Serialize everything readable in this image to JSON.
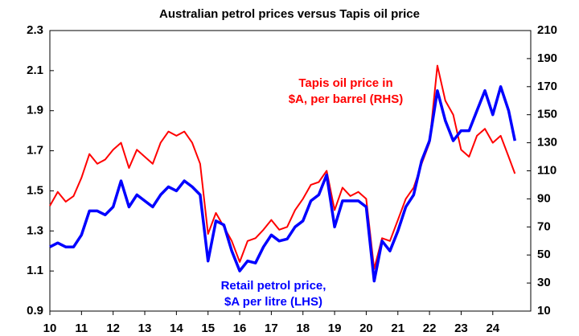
{
  "chart_data": {
    "type": "line",
    "title": "Australian petrol prices versus Tapis oil price",
    "annotations": [
      {
        "lines": [
          "Tapis oil price in",
          "$A, per barrel (RHS)"
        ],
        "color": "#ff0000"
      },
      {
        "lines": [
          "Retail petrol price,",
          "$A per litre (LHS)"
        ],
        "color": "#0000ff"
      }
    ],
    "x": [
      2010.0,
      2010.25,
      2010.5,
      2010.75,
      2011.0,
      2011.25,
      2011.5,
      2011.75,
      2012.0,
      2012.25,
      2012.5,
      2012.75,
      2013.0,
      2013.25,
      2013.5,
      2013.75,
      2014.0,
      2014.25,
      2014.5,
      2014.75,
      2015.0,
      2015.25,
      2015.5,
      2015.75,
      2016.0,
      2016.25,
      2016.5,
      2016.75,
      2017.0,
      2017.25,
      2017.5,
      2017.75,
      2018.0,
      2018.25,
      2018.5,
      2018.75,
      2019.0,
      2019.25,
      2019.5,
      2019.75,
      2020.0,
      2020.25,
      2020.5,
      2020.75,
      2021.0,
      2021.25,
      2021.5,
      2021.75,
      2022.0,
      2022.25,
      2022.5,
      2022.75,
      2023.0,
      2023.25,
      2023.5,
      2023.75,
      2024.0,
      2024.25,
      2024.5,
      2024.7
    ],
    "series": [
      {
        "name": "Retail petrol price, $A per litre (LHS)",
        "color": "#0000ff",
        "axis": "y",
        "values": [
          1.22,
          1.24,
          1.22,
          1.22,
          1.28,
          1.4,
          1.4,
          1.38,
          1.42,
          1.55,
          1.42,
          1.48,
          1.45,
          1.42,
          1.48,
          1.52,
          1.5,
          1.55,
          1.52,
          1.48,
          1.15,
          1.35,
          1.33,
          1.2,
          1.1,
          1.15,
          1.14,
          1.22,
          1.28,
          1.25,
          1.26,
          1.32,
          1.35,
          1.45,
          1.48,
          1.58,
          1.32,
          1.45,
          1.45,
          1.45,
          1.42,
          1.05,
          1.25,
          1.2,
          1.3,
          1.42,
          1.48,
          1.65,
          1.75,
          2.0,
          1.85,
          1.75,
          1.8,
          1.8,
          1.9,
          2.0,
          1.88,
          2.02,
          1.9,
          1.75
        ]
      },
      {
        "name": "Tapis oil price in $A, per barrel (RHS)",
        "color": "#ff0000",
        "axis": "y2",
        "values": [
          85,
          95,
          88,
          92,
          105,
          122,
          115,
          118,
          125,
          130,
          112,
          125,
          120,
          115,
          130,
          138,
          135,
          138,
          130,
          115,
          65,
          80,
          70,
          60,
          45,
          60,
          62,
          68,
          75,
          68,
          70,
          82,
          90,
          100,
          102,
          110,
          82,
          98,
          92,
          95,
          90,
          40,
          62,
          60,
          75,
          90,
          98,
          115,
          130,
          185,
          160,
          150,
          125,
          120,
          135,
          140,
          130,
          135,
          120,
          108
        ]
      }
    ],
    "xlim": [
      2010,
      2025.2
    ],
    "xticks": [
      {
        "value": 2010,
        "label": "10"
      },
      {
        "value": 2011,
        "label": "11"
      },
      {
        "value": 2012,
        "label": "12"
      },
      {
        "value": 2013,
        "label": "13"
      },
      {
        "value": 2014,
        "label": "14"
      },
      {
        "value": 2015,
        "label": "15"
      },
      {
        "value": 2016,
        "label": "16"
      },
      {
        "value": 2017,
        "label": "17"
      },
      {
        "value": 2018,
        "label": "18"
      },
      {
        "value": 2019,
        "label": "19"
      },
      {
        "value": 2020,
        "label": "20"
      },
      {
        "value": 2021,
        "label": "21"
      },
      {
        "value": 2022,
        "label": "22"
      },
      {
        "value": 2023,
        "label": "23"
      },
      {
        "value": 2024,
        "label": "24"
      }
    ],
    "ylim": [
      0.9,
      2.3
    ],
    "yticks": [
      0.9,
      1.1,
      1.3,
      1.5,
      1.7,
      1.9,
      2.1,
      2.3
    ],
    "y2lim": [
      10,
      210
    ],
    "y2ticks": [
      10,
      30,
      50,
      70,
      90,
      110,
      130,
      150,
      170,
      190,
      210
    ],
    "grid": false
  }
}
